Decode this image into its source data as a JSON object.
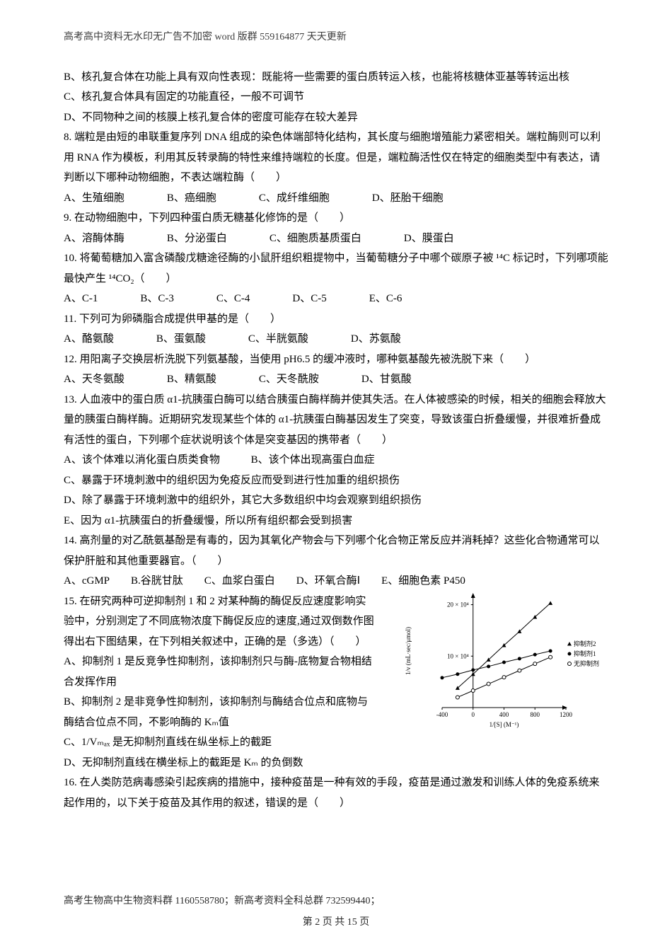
{
  "header": "高考高中资料无水印无广告不加密 word 版群 559164877 天天更新",
  "footer": {
    "line": "高考生物高中生物资料群 1160558780；新高考资料全科总群 732599440；",
    "page": "第 2 页 共 15 页"
  },
  "body": {
    "b": "B、核孔复合体在功能上具有双向性表现：既能将一些需要的蛋白质转运入核，也能将核糖体亚基等转运出核",
    "c": "C、核孔复合体具有固定的功能直径，一般不可调节",
    "d": "D、不同物种之间的核膜上核孔复合体的密度可能存在较大差异",
    "q8": "8. 端粒是由短的串联重复序列 DNA 组成的染色体端部特化结构，其长度与细胞增殖能力紧密相关。端粒酶则可以利用 RNA 作为模板，利用其反转录酶的特性来维持端粒的长度。但是，端粒酶活性仅在特定的细胞类型中有表达，请判断以下哪种动物细胞，不表达端粒酶（　　）",
    "q8a": "A、生殖细胞",
    "q8b": "B、癌细胞",
    "q8c": "C、成纤维细胞",
    "q8d": "D、胚胎干细胞",
    "q9": "9. 在动物细胞中，下列四种蛋白质无糖基化修饰的是（　　）",
    "q9a": "A、溶酶体酶",
    "q9b": "B、分泌蛋白",
    "q9c": "C、细胞质基质蛋白",
    "q9d": "D、膜蛋白",
    "q10": "10. 将葡萄糖加入富含磷酸戊糖途径酶的小鼠肝组织粗提物中，当葡萄糖分子中哪个碳原子被 ¹⁴C 标记时，下列哪项能最快产生 ¹⁴CO₂（　　）",
    "q10a": "A、C-1",
    "q10b": "B、C-3",
    "q10c": "C、C-4",
    "q10d": "D、C-5",
    "q10e": "E、C-6",
    "q11": "11. 下列可为卵磷脂合成提供甲基的是（　　）",
    "q11a": "A、酪氨酸",
    "q11b": "B、蛋氨酸",
    "q11c": "C、半胱氨酸",
    "q11d": "D、苏氨酸",
    "q12": "12. 用阳离子交换层析洗脱下列氨基酸，当使用 pH6.5 的缓冲液时，哪种氨基酸先被洗脱下来（　　）",
    "q12a": "A、天冬氨酸",
    "q12b": "B、精氨酸",
    "q12c": "C、天冬酰胺",
    "q12d": "D、甘氨酸",
    "q13": "13. 人血液中的蛋白质 α1-抗胰蛋白酶可以结合胰蛋白酶样酶并使其失活。在人体被感染的时候，相关的细胞会释放大量的胰蛋白酶样酶。近期研究发现某些个体的 α1-抗胰蛋白酶基因发生了突变，导致该蛋白折叠缓慢，并很难折叠成有活性的蛋白，下列哪个症状说明该个体是突变基因的携带者（　　）",
    "q13a": "A、该个体难以消化蛋白质类食物",
    "q13b": "B、该个体出现高蛋白血症",
    "q13c": "C、暴露于环境刺激中的组织因为免疫反应而受到进行性加重的组织损伤",
    "q13d": "D、除了暴露于环境刺激中的组织外，其它大多数组织中均会观察到组织损伤",
    "q13e": "E、因为 α1-抗胰蛋白的折叠缓慢，所以所有组织都会受到损害",
    "q14": "14. 高剂量的对乙酰氨基酚是有毒的，因为其氧化产物会与下列哪个化合物正常反应并消耗掉？这些化合物通常可以保护肝脏和其他重要器官。（　　）",
    "q14a": "A、cGMP",
    "q14b": "B.谷胱甘肽",
    "q14c": "C、血浆白蛋白",
    "q14d": "D、环氧合酶Ⅰ",
    "q14e": "E、细胞色素 P450",
    "q15": "15. 在研究两种可逆抑制剂 1 和 2 对某种酶的酶促反应速度影响实验中，分别测定了不同底物浓度下酶促反应的速度,通过双倒数作图得出右下图结果，在下列相关叙述中，正确的是（多选）（　　）",
    "q15a": "A、抑制剂 1 是反竞争性抑制剂，该抑制剂只与酶-底物复合物相结合发挥作用",
    "q15b": "B、抑制剂 2 是非竞争性抑制剂，该抑制剂与酶结合位点和底物与酶结合位点不同，不影响酶的 Kₘ值",
    "q15c": "C、1/Vₘₐₓ 是无抑制剂直线在纵坐标上的截距",
    "q15d": "D、无抑制剂直线在横坐标上的截距是 Kₘ 的负倒数",
    "q16": "16. 在人类防范病毒感染引起疾病的措施中，接种疫苗是一种有效的手段，疫苗是通过激发和训练人体的免疫系统来起作用的，以下关于疫苗及其作用的叙述，错误的是（　　）"
  },
  "chart": {
    "type": "line",
    "xlim": [
      -400,
      1200
    ],
    "ylim": [
      0,
      22
    ],
    "xticks": [
      -400,
      0,
      400,
      800,
      1200
    ],
    "yticks_labels": [
      "10 × 10⁴",
      "20 × 10⁴"
    ],
    "ytick_values": [
      10,
      20
    ],
    "xlabel": "1/[S] (M⁻¹)",
    "ylabel": "1/v\n(mL·sec/μmol)",
    "font_size": 9,
    "axis_color": "#000000",
    "bg": "#ffffff",
    "series": [
      {
        "name": "抑制剂2",
        "marker": "triangle",
        "color": "#000000",
        "points": [
          [
            -200,
            3.8
          ],
          [
            0,
            6.5
          ],
          [
            200,
            9.3
          ],
          [
            400,
            12.1
          ],
          [
            600,
            14.8
          ],
          [
            800,
            17.6
          ],
          [
            1000,
            20.3
          ]
        ]
      },
      {
        "name": "抑制剂1",
        "marker": "circle_filled",
        "color": "#000000",
        "points": [
          [
            -400,
            5.8
          ],
          [
            -200,
            6.5
          ],
          [
            0,
            7.3
          ],
          [
            200,
            8.0
          ],
          [
            400,
            8.8
          ],
          [
            600,
            9.5
          ],
          [
            800,
            10.3
          ],
          [
            1000,
            11.0
          ]
        ]
      },
      {
        "name": "无抑制剂",
        "marker": "circle_open",
        "color": "#000000",
        "points": [
          [
            -200,
            2.0
          ],
          [
            0,
            3.3
          ],
          [
            200,
            4.6
          ],
          [
            400,
            5.9
          ],
          [
            600,
            7.2
          ],
          [
            800,
            8.5
          ],
          [
            1000,
            9.8
          ]
        ]
      }
    ],
    "legend": [
      {
        "marker": "triangle",
        "label": "抑制剂2"
      },
      {
        "marker": "circle_filled",
        "label": "抑制剂1"
      },
      {
        "marker": "circle_open",
        "label": "无抑制剂"
      }
    ]
  }
}
